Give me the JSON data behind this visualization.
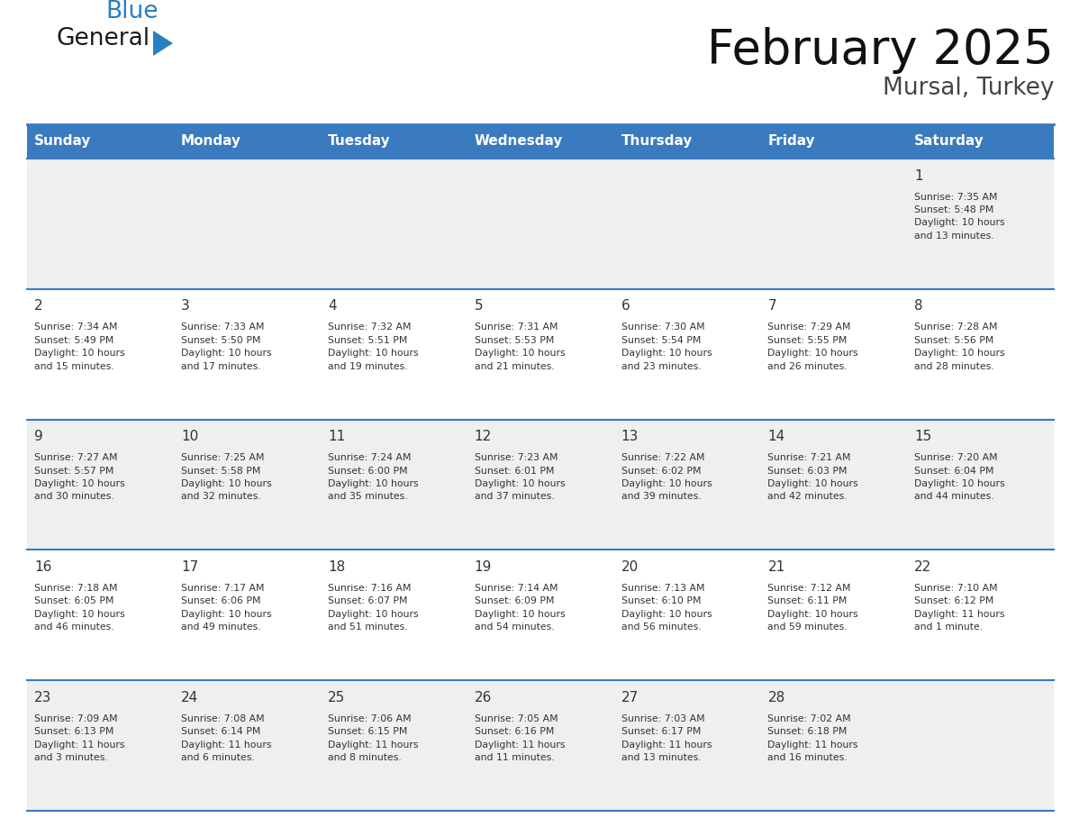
{
  "title": "February 2025",
  "subtitle": "Mursal, Turkey",
  "header_color": "#3a7abf",
  "header_text_color": "#ffffff",
  "bg_color": "#ffffff",
  "cell_odd_color": "#efefef",
  "cell_even_color": "#ffffff",
  "text_color": "#333333",
  "days_of_week": [
    "Sunday",
    "Monday",
    "Tuesday",
    "Wednesday",
    "Thursday",
    "Friday",
    "Saturday"
  ],
  "weeks": [
    [
      {
        "day": "",
        "info": ""
      },
      {
        "day": "",
        "info": ""
      },
      {
        "day": "",
        "info": ""
      },
      {
        "day": "",
        "info": ""
      },
      {
        "day": "",
        "info": ""
      },
      {
        "day": "",
        "info": ""
      },
      {
        "day": "1",
        "info": "Sunrise: 7:35 AM\nSunset: 5:48 PM\nDaylight: 10 hours\nand 13 minutes."
      }
    ],
    [
      {
        "day": "2",
        "info": "Sunrise: 7:34 AM\nSunset: 5:49 PM\nDaylight: 10 hours\nand 15 minutes."
      },
      {
        "day": "3",
        "info": "Sunrise: 7:33 AM\nSunset: 5:50 PM\nDaylight: 10 hours\nand 17 minutes."
      },
      {
        "day": "4",
        "info": "Sunrise: 7:32 AM\nSunset: 5:51 PM\nDaylight: 10 hours\nand 19 minutes."
      },
      {
        "day": "5",
        "info": "Sunrise: 7:31 AM\nSunset: 5:53 PM\nDaylight: 10 hours\nand 21 minutes."
      },
      {
        "day": "6",
        "info": "Sunrise: 7:30 AM\nSunset: 5:54 PM\nDaylight: 10 hours\nand 23 minutes."
      },
      {
        "day": "7",
        "info": "Sunrise: 7:29 AM\nSunset: 5:55 PM\nDaylight: 10 hours\nand 26 minutes."
      },
      {
        "day": "8",
        "info": "Sunrise: 7:28 AM\nSunset: 5:56 PM\nDaylight: 10 hours\nand 28 minutes."
      }
    ],
    [
      {
        "day": "9",
        "info": "Sunrise: 7:27 AM\nSunset: 5:57 PM\nDaylight: 10 hours\nand 30 minutes."
      },
      {
        "day": "10",
        "info": "Sunrise: 7:25 AM\nSunset: 5:58 PM\nDaylight: 10 hours\nand 32 minutes."
      },
      {
        "day": "11",
        "info": "Sunrise: 7:24 AM\nSunset: 6:00 PM\nDaylight: 10 hours\nand 35 minutes."
      },
      {
        "day": "12",
        "info": "Sunrise: 7:23 AM\nSunset: 6:01 PM\nDaylight: 10 hours\nand 37 minutes."
      },
      {
        "day": "13",
        "info": "Sunrise: 7:22 AM\nSunset: 6:02 PM\nDaylight: 10 hours\nand 39 minutes."
      },
      {
        "day": "14",
        "info": "Sunrise: 7:21 AM\nSunset: 6:03 PM\nDaylight: 10 hours\nand 42 minutes."
      },
      {
        "day": "15",
        "info": "Sunrise: 7:20 AM\nSunset: 6:04 PM\nDaylight: 10 hours\nand 44 minutes."
      }
    ],
    [
      {
        "day": "16",
        "info": "Sunrise: 7:18 AM\nSunset: 6:05 PM\nDaylight: 10 hours\nand 46 minutes."
      },
      {
        "day": "17",
        "info": "Sunrise: 7:17 AM\nSunset: 6:06 PM\nDaylight: 10 hours\nand 49 minutes."
      },
      {
        "day": "18",
        "info": "Sunrise: 7:16 AM\nSunset: 6:07 PM\nDaylight: 10 hours\nand 51 minutes."
      },
      {
        "day": "19",
        "info": "Sunrise: 7:14 AM\nSunset: 6:09 PM\nDaylight: 10 hours\nand 54 minutes."
      },
      {
        "day": "20",
        "info": "Sunrise: 7:13 AM\nSunset: 6:10 PM\nDaylight: 10 hours\nand 56 minutes."
      },
      {
        "day": "21",
        "info": "Sunrise: 7:12 AM\nSunset: 6:11 PM\nDaylight: 10 hours\nand 59 minutes."
      },
      {
        "day": "22",
        "info": "Sunrise: 7:10 AM\nSunset: 6:12 PM\nDaylight: 11 hours\nand 1 minute."
      }
    ],
    [
      {
        "day": "23",
        "info": "Sunrise: 7:09 AM\nSunset: 6:13 PM\nDaylight: 11 hours\nand 3 minutes."
      },
      {
        "day": "24",
        "info": "Sunrise: 7:08 AM\nSunset: 6:14 PM\nDaylight: 11 hours\nand 6 minutes."
      },
      {
        "day": "25",
        "info": "Sunrise: 7:06 AM\nSunset: 6:15 PM\nDaylight: 11 hours\nand 8 minutes."
      },
      {
        "day": "26",
        "info": "Sunrise: 7:05 AM\nSunset: 6:16 PM\nDaylight: 11 hours\nand 11 minutes."
      },
      {
        "day": "27",
        "info": "Sunrise: 7:03 AM\nSunset: 6:17 PM\nDaylight: 11 hours\nand 13 minutes."
      },
      {
        "day": "28",
        "info": "Sunrise: 7:02 AM\nSunset: 6:18 PM\nDaylight: 11 hours\nand 16 minutes."
      },
      {
        "day": "",
        "info": ""
      }
    ]
  ],
  "logo_general_color": "#1a1a1a",
  "logo_blue_color": "#2a7fc1",
  "logo_triangle_color": "#2a7fc1"
}
